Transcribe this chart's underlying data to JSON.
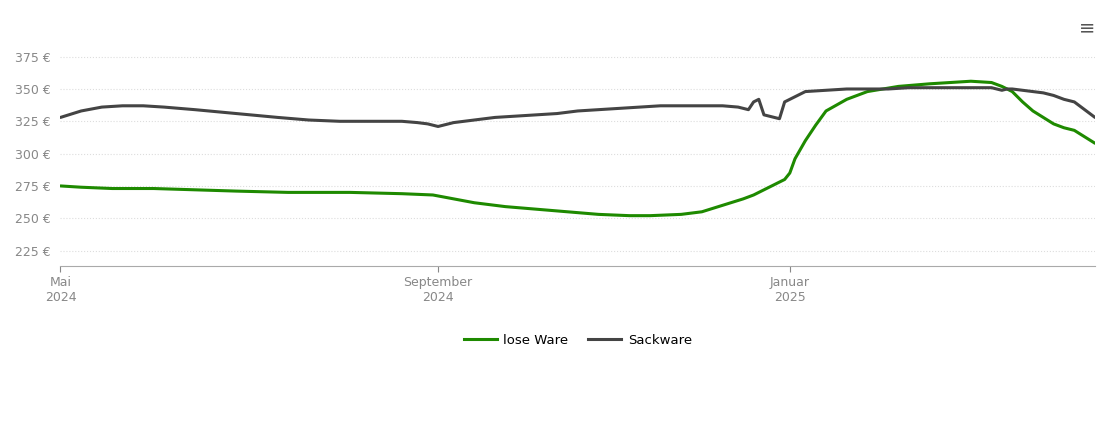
{
  "background_color": "#ffffff",
  "grid_color": "#dddddd",
  "yticks": [
    225,
    250,
    275,
    300,
    325,
    350,
    375
  ],
  "xtick_labels": [
    "Mai\n2024",
    "September\n2024",
    "Januar\n2025"
  ],
  "xtick_positions": [
    0.0,
    0.365,
    0.705
  ],
  "ymin": 213,
  "ymax": 385,
  "loose_ware_color": "#1e8a00",
  "sack_ware_color": "#444444",
  "legend_labels": [
    "lose Ware",
    "Sackware"
  ],
  "loose_x": [
    0.0,
    0.02,
    0.05,
    0.09,
    0.13,
    0.17,
    0.22,
    0.28,
    0.33,
    0.36,
    0.38,
    0.4,
    0.43,
    0.46,
    0.49,
    0.52,
    0.55,
    0.57,
    0.6,
    0.62,
    0.64,
    0.66,
    0.67,
    0.675,
    0.68,
    0.685,
    0.69,
    0.695,
    0.7,
    0.705,
    0.71,
    0.72,
    0.73,
    0.74,
    0.76,
    0.78,
    0.81,
    0.84,
    0.86,
    0.88,
    0.9,
    0.91,
    0.92,
    0.93,
    0.94,
    0.95,
    0.96,
    0.97,
    0.98,
    1.0
  ],
  "loose_y": [
    275,
    274,
    273,
    273,
    272,
    271,
    270,
    270,
    269,
    268,
    265,
    262,
    259,
    257,
    255,
    253,
    252,
    252,
    253,
    255,
    260,
    265,
    268,
    270,
    272,
    274,
    276,
    278,
    280,
    285,
    296,
    310,
    322,
    333,
    342,
    348,
    352,
    354,
    355,
    356,
    355,
    352,
    348,
    340,
    333,
    328,
    323,
    320,
    318,
    308
  ],
  "sack_x": [
    0.0,
    0.02,
    0.04,
    0.06,
    0.08,
    0.1,
    0.13,
    0.17,
    0.21,
    0.24,
    0.27,
    0.3,
    0.33,
    0.345,
    0.355,
    0.36,
    0.365,
    0.37,
    0.38,
    0.4,
    0.42,
    0.44,
    0.46,
    0.48,
    0.5,
    0.52,
    0.54,
    0.56,
    0.58,
    0.6,
    0.62,
    0.64,
    0.655,
    0.66,
    0.665,
    0.67,
    0.675,
    0.68,
    0.685,
    0.69,
    0.695,
    0.7,
    0.705,
    0.71,
    0.715,
    0.72,
    0.74,
    0.76,
    0.78,
    0.8,
    0.82,
    0.84,
    0.86,
    0.88,
    0.9,
    0.905,
    0.91,
    0.915,
    0.92,
    0.93,
    0.94,
    0.95,
    0.96,
    0.97,
    0.98,
    1.0
  ],
  "sack_y": [
    328,
    333,
    336,
    337,
    337,
    336,
    334,
    331,
    328,
    326,
    325,
    325,
    325,
    324,
    323,
    322,
    321,
    322,
    324,
    326,
    328,
    329,
    330,
    331,
    333,
    334,
    335,
    336,
    337,
    337,
    337,
    337,
    336,
    335,
    334,
    340,
    342,
    330,
    329,
    328,
    327,
    340,
    342,
    344,
    346,
    348,
    349,
    350,
    350,
    350,
    351,
    351,
    351,
    351,
    351,
    350,
    349,
    350,
    350,
    349,
    348,
    347,
    345,
    342,
    340,
    328
  ]
}
